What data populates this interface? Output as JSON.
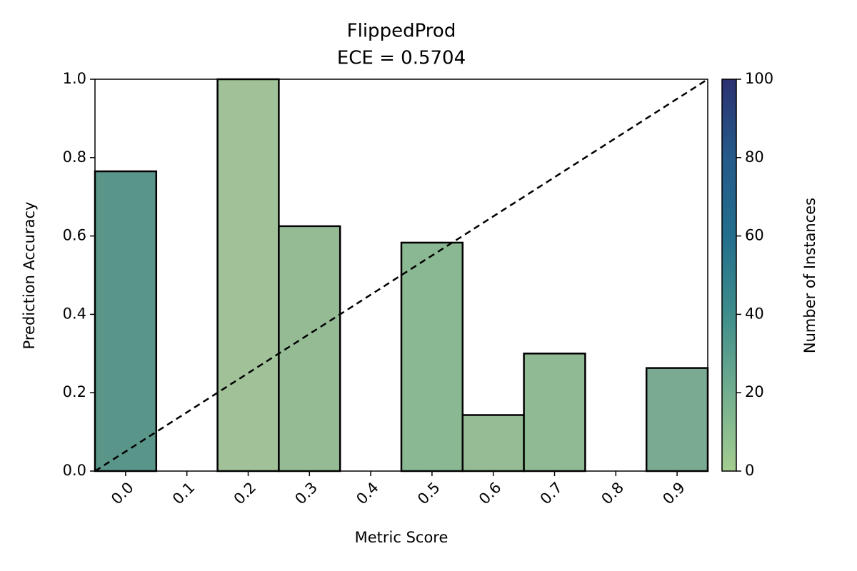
{
  "chart_data": {
    "type": "bar",
    "title": "FlippedProd",
    "subtitle": "ECE = 0.5704",
    "x_label": "Metric Score",
    "y_label": "Prediction Accuracy",
    "categories": [
      "0.0",
      "0.1",
      "0.2",
      "0.3",
      "0.4",
      "0.5",
      "0.6",
      "0.7",
      "0.8",
      "0.9"
    ],
    "values": [
      0.765,
      null,
      1.0,
      0.625,
      null,
      0.583,
      0.143,
      0.3,
      null,
      0.263
    ],
    "colors": [
      "#5a9589",
      null,
      "#a1c298",
      "#95bb95",
      null,
      "#8ab893",
      "#95bc95",
      "#8fba93",
      null,
      "#7aab92"
    ],
    "edge_color": "#000000",
    "ylim": [
      0,
      1
    ],
    "yticks": [
      {
        "value": 0,
        "label": "0.0"
      },
      0.2,
      0.4,
      0.6,
      0.8,
      {
        "value": 1,
        "label": "1.0"
      }
    ],
    "diagonal": true,
    "colorbar": {
      "label": "Number of Instances",
      "lim": [
        0,
        100
      ],
      "ticks": [
        0,
        20,
        40,
        60,
        80,
        100
      ],
      "colors": [
        "#a5cd90",
        "#72ae8f",
        "#3e8d8b",
        "#236e8c",
        "#255a8a",
        "#2c3172"
      ]
    }
  }
}
